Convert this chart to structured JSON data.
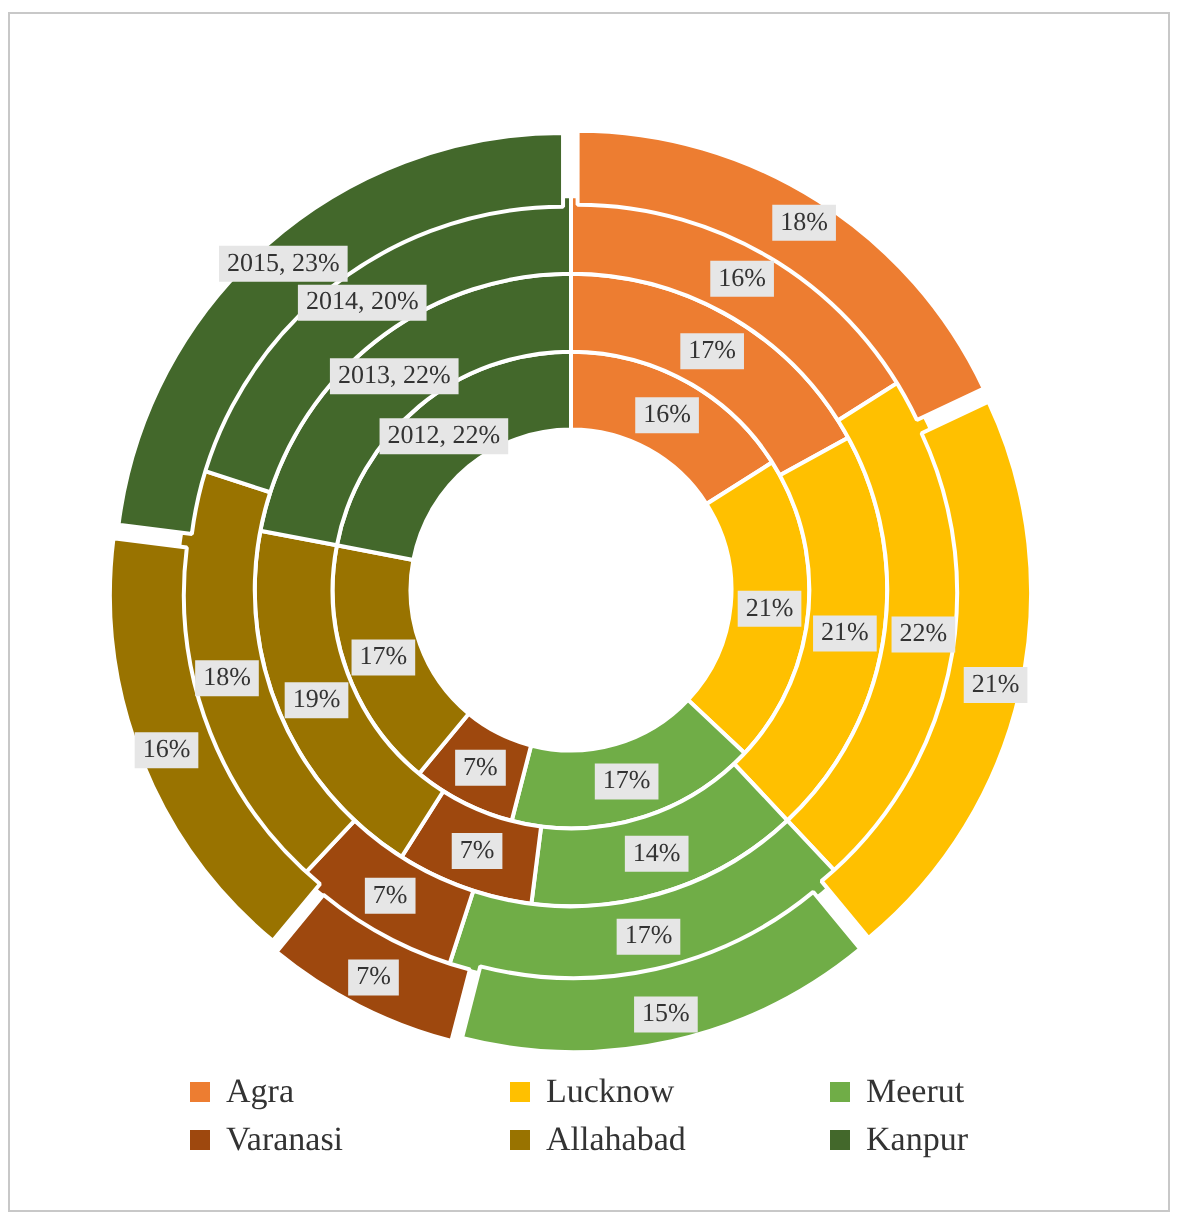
{
  "chart_data": {
    "type": "donut",
    "categories": [
      "Agra",
      "Lucknow",
      "Meerut",
      "Varanasi",
      "Allahabad",
      "Kanpur"
    ],
    "colors": [
      "#ed7d31",
      "#ffc000",
      "#70ad47",
      "#9e480e",
      "#997300",
      "#43682b"
    ],
    "series": [
      {
        "values": [
          16,
          21,
          17,
          7,
          17,
          22
        ],
        "value_labels": [
          "16%",
          "21%",
          "17%",
          "7%",
          "17%",
          "2012, 22%"
        ]
      },
      {
        "values": [
          17,
          21,
          14,
          7,
          19,
          22
        ],
        "value_labels": [
          "17%",
          "21%",
          "14%",
          "7%",
          "19%",
          "2013, 22%"
        ]
      },
      {
        "values": [
          16,
          22,
          17,
          7,
          18,
          20
        ],
        "value_labels": [
          "16%",
          "22%",
          "17%",
          "7%",
          "18%",
          "2014, 20%"
        ]
      },
      {
        "values": [
          18,
          21,
          15,
          7,
          16,
          23
        ],
        "value_labels": [
          "18%",
          "21%",
          "15%",
          "7%",
          "16%",
          "2015, 23%"
        ]
      }
    ],
    "legend": "bottom"
  }
}
